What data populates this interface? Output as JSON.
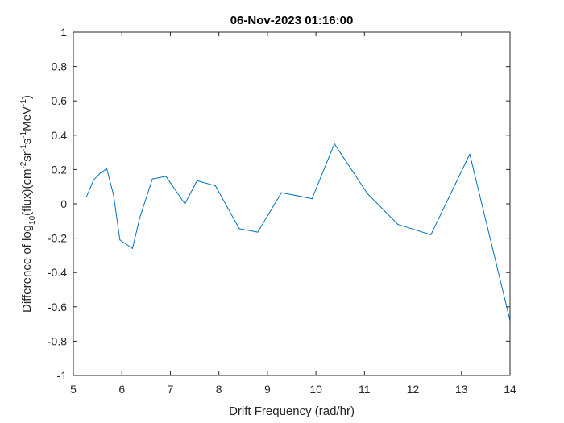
{
  "chart_data": {
    "type": "line",
    "title": "06-Nov-2023 01:16:00",
    "xlabel": "Drift Frequency (rad/hr)",
    "ylabel": {
      "prefix": "Difference of log",
      "sub10": "10",
      "part1": "(flux)(cm",
      "sup1": "-2",
      "part2": "sr",
      "sup2": "-1",
      "part3": "s",
      "sup3": "-1",
      "part4": "MeV",
      "sup4": "-1",
      "suffix": ")"
    },
    "xlim": [
      5,
      14
    ],
    "ylim": [
      -1,
      1
    ],
    "xticks": [
      "5",
      "6",
      "7",
      "8",
      "9",
      "10",
      "11",
      "12",
      "13",
      "14"
    ],
    "yticks": [
      "-1",
      "-0.8",
      "-0.6",
      "-0.4",
      "-0.2",
      "0",
      "0.2",
      "0.4",
      "0.6",
      "0.8",
      "1"
    ],
    "grid": false,
    "series": [
      {
        "color": "#0072BD",
        "x": [
          5.27,
          5.42,
          5.56,
          5.69,
          5.83,
          5.96,
          6.22,
          6.37,
          6.63,
          6.91,
          7.3,
          7.55,
          7.93,
          8.42,
          8.8,
          9.29,
          9.92,
          10.38,
          11.06,
          11.69,
          12.37,
          13.17,
          14.0
        ],
        "y": [
          0.04,
          0.14,
          0.18,
          0.205,
          0.05,
          -0.21,
          -0.26,
          -0.08,
          0.145,
          0.16,
          0.0,
          0.135,
          0.105,
          -0.145,
          -0.165,
          0.065,
          0.03,
          0.35,
          0.06,
          -0.12,
          -0.18,
          0.29,
          -0.68
        ]
      }
    ]
  },
  "colors": {
    "line": "#0072BD",
    "axis": "#262626",
    "background": "#ffffff"
  }
}
